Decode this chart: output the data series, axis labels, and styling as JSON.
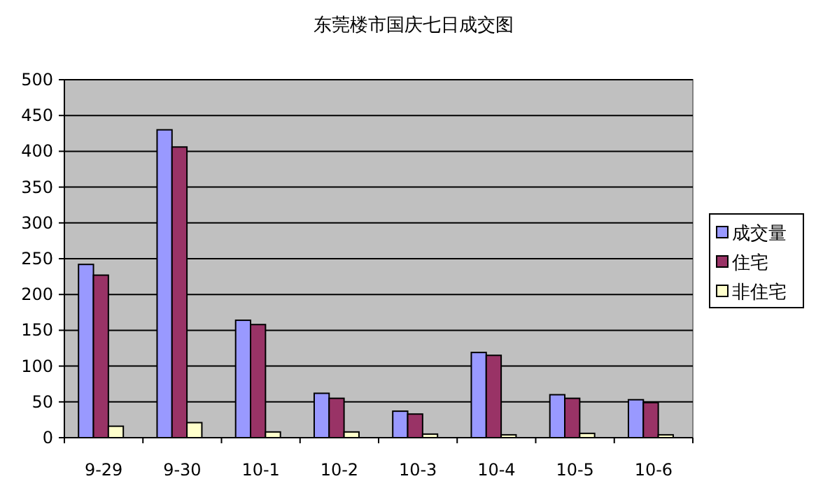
{
  "chart_data": {
    "type": "bar",
    "title": "东莞楼市国庆七日成交图",
    "categories": [
      "9-29",
      "9-30",
      "10-1",
      "10-2",
      "10-3",
      "10-4",
      "10-5",
      "10-6"
    ],
    "series": [
      {
        "name": "成交量",
        "color": "#9999ff",
        "values": [
          242,
          430,
          164,
          62,
          37,
          119,
          60,
          53
        ]
      },
      {
        "name": "住宅",
        "color": "#993366",
        "values": [
          227,
          406,
          158,
          55,
          33,
          115,
          55,
          49
        ]
      },
      {
        "name": "非住宅",
        "color": "#ffffcc",
        "values": [
          16,
          21,
          8,
          8,
          5,
          4,
          6,
          4
        ]
      }
    ],
    "ylim": [
      0,
      500
    ],
    "yticks": [
      0,
      50,
      100,
      150,
      200,
      250,
      300,
      350,
      400,
      450,
      500
    ],
    "grid": "y",
    "legend": "right"
  }
}
